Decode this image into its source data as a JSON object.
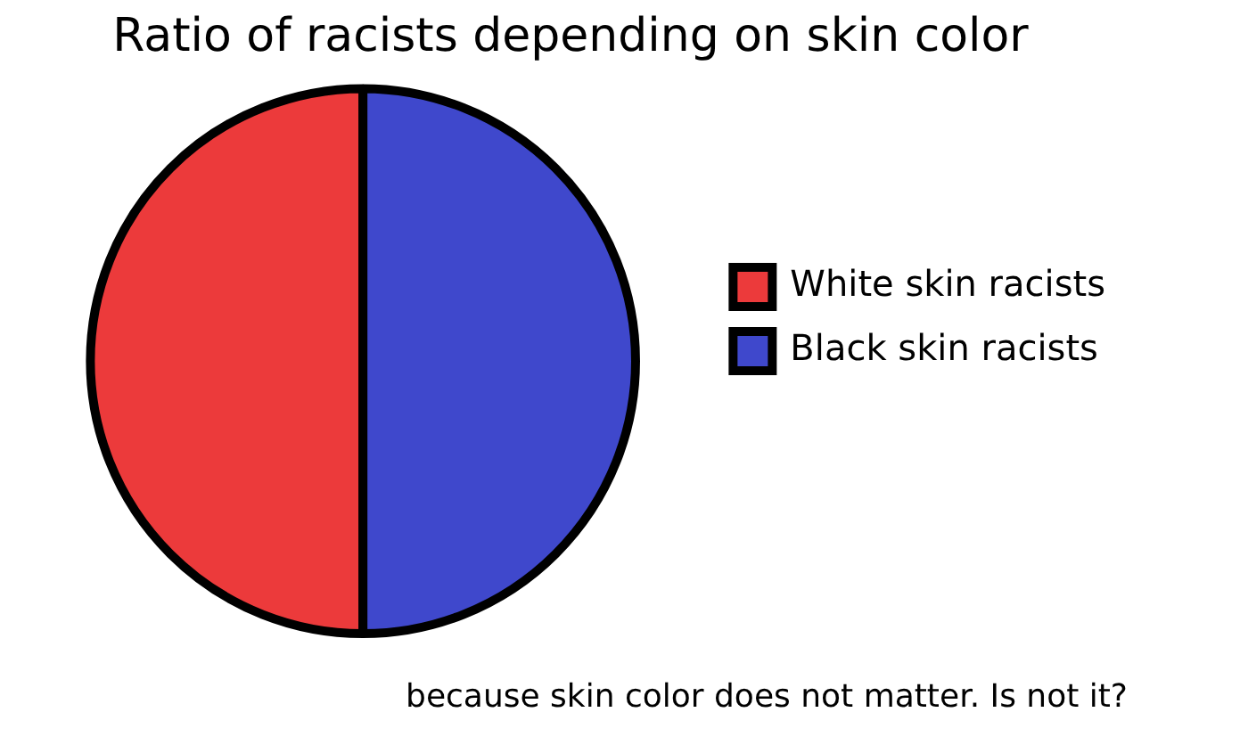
{
  "chart_data": {
    "type": "pie",
    "title": "Ratio of racists depending on skin color",
    "categories": [
      "White skin racists",
      "Black skin racists"
    ],
    "values": [
      50,
      50
    ],
    "colors": [
      "#ec3a3b",
      "#3f48cc"
    ],
    "legend": "right",
    "annotations": [
      "because skin color does not matter. Is not it?"
    ]
  }
}
